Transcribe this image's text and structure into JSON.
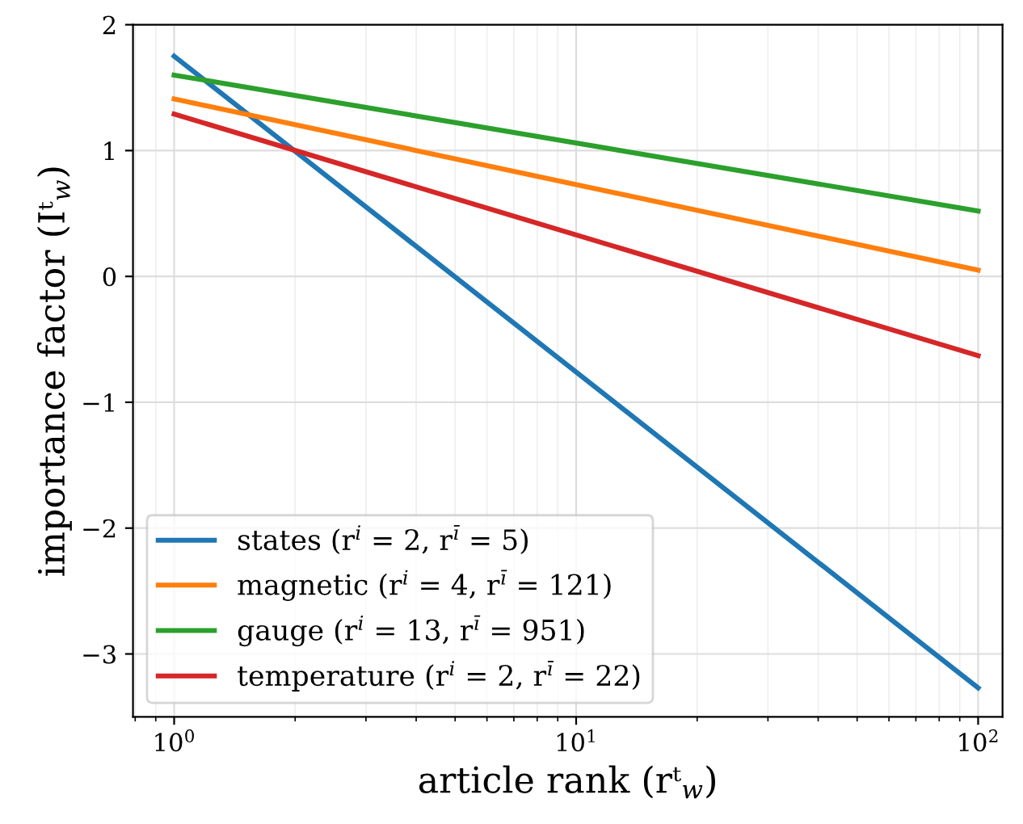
{
  "chart_data": {
    "type": "line",
    "xlabel": "article rank (rᵗ$_{w}$)",
    "ylabel": "importance factor (Iᵗ$_{w}$)",
    "x": [
      1,
      100
    ],
    "series": [
      {
        "name": "states (r$^{i}$ = 2, r$^{ī}$ = 5)",
        "color": "#1f77b4",
        "values": [
          1.75,
          -3.27
        ]
      },
      {
        "name": "magnetic (r$^{i}$ = 4, r$^{ī}$ = 121)",
        "color": "#ff7f0e",
        "values": [
          1.41,
          0.05
        ]
      },
      {
        "name": "gauge (r$^{i}$ = 13, r$^{ī}$ = 951)",
        "color": "#2ca02c",
        "values": [
          1.6,
          0.52
        ]
      },
      {
        "name": "temperature (r$^{i}$ = 2, r$^{ī}$ = 22)",
        "color": "#d62728",
        "values": [
          1.29,
          -0.63
        ]
      }
    ],
    "log": "x",
    "xlim": [
      0.79,
      115
    ],
    "xticks": [
      {
        "value": 1,
        "label": "10$^{0}$"
      },
      {
        "value": 10,
        "label": "10$^{1}$"
      },
      {
        "value": 100,
        "label": "10$^{2}$"
      }
    ],
    "ylim": [
      -3.5,
      2
    ],
    "yticks": [
      -3,
      -2,
      -1,
      0,
      1,
      2
    ],
    "grid": true,
    "legend": "bottom left",
    "marker": "none",
    "line_style": "solid"
  }
}
